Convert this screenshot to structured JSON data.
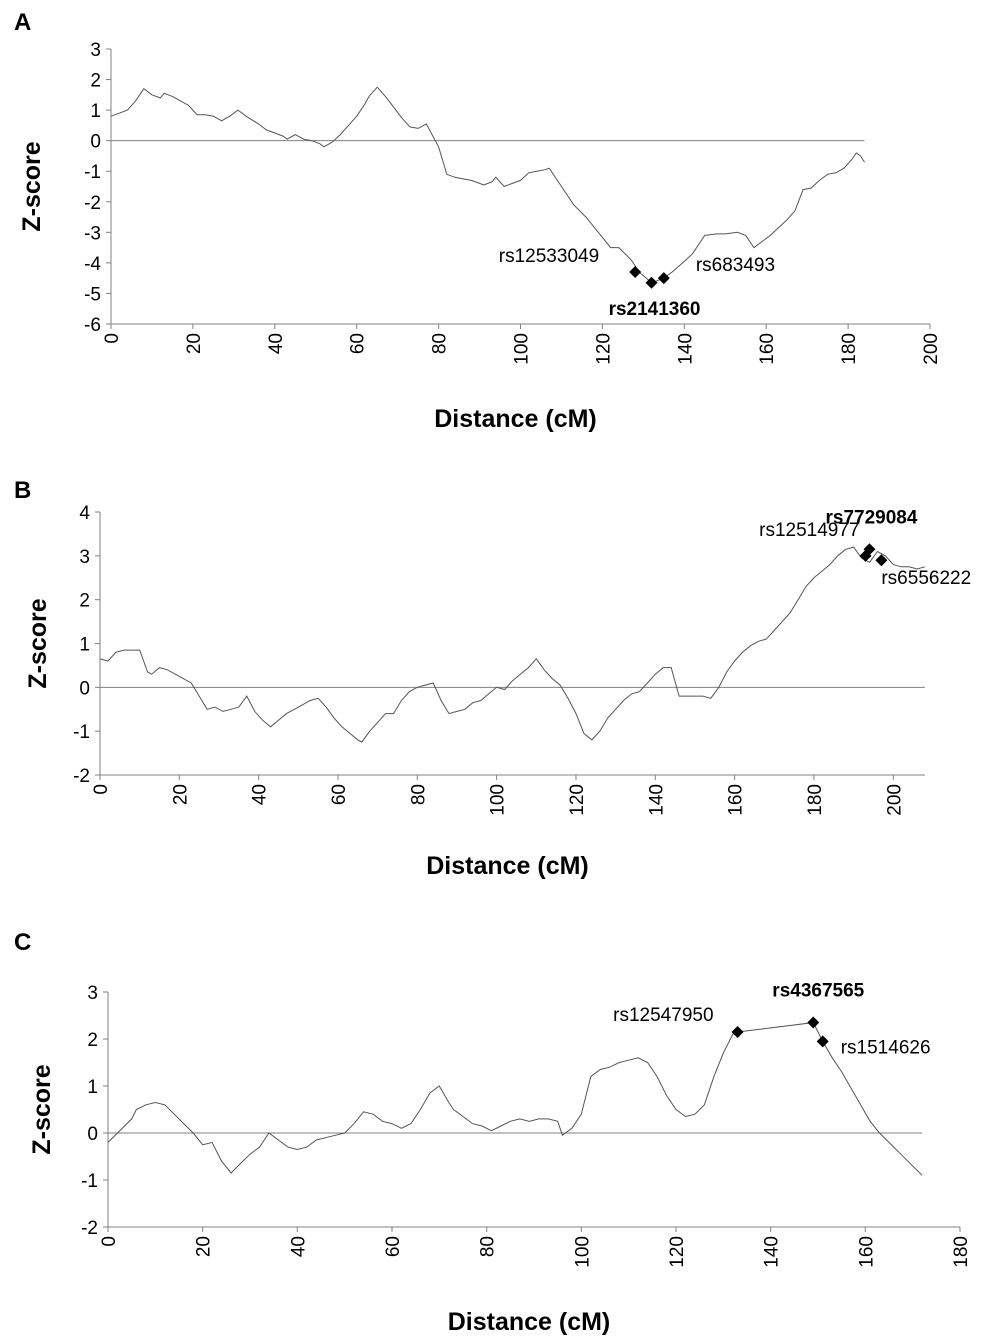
{
  "chart_data": [
    {
      "type": "line",
      "panel": "A",
      "xlabel": "Distance (cM)",
      "ylabel": "Z-score",
      "xlim": [
        0,
        200
      ],
      "ylim": [
        -6,
        3
      ],
      "xticks": [
        "0",
        "20",
        "40",
        "60",
        "80",
        "100",
        "120",
        "140",
        "160",
        "180",
        "200"
      ],
      "yticks": [
        "3",
        "2",
        "1",
        "0",
        "-1",
        "-2",
        "-3",
        "-4",
        "-5",
        "-6"
      ],
      "zero_line": true,
      "series": [
        {
          "x": [
            0,
            2,
            4,
            6,
            8,
            10,
            12,
            13,
            15,
            17,
            19,
            21,
            23,
            25,
            27,
            29,
            31,
            33,
            36,
            38,
            40,
            42,
            43,
            45,
            47,
            49,
            51,
            52,
            54,
            56,
            58,
            60,
            62,
            63,
            65,
            67,
            69,
            71,
            73,
            75,
            77,
            78,
            80,
            82,
            84,
            86,
            88,
            90,
            91,
            93,
            94,
            96,
            98,
            100,
            102,
            104,
            106,
            107,
            110,
            113,
            116,
            119,
            122,
            124,
            127,
            129,
            132,
            135,
            137,
            140,
            142,
            145,
            148,
            150,
            153,
            155,
            157,
            159,
            161,
            163,
            165,
            167,
            169,
            171,
            173,
            175,
            177,
            179,
            181,
            182,
            183,
            184
          ],
          "y": [
            0.8,
            0.9,
            1.0,
            1.3,
            1.7,
            1.5,
            1.4,
            1.55,
            1.45,
            1.3,
            1.15,
            0.85,
            0.85,
            0.8,
            0.65,
            0.8,
            1.0,
            0.8,
            0.55,
            0.35,
            0.25,
            0.15,
            0.05,
            0.2,
            0.05,
            0.0,
            -0.1,
            -0.2,
            -0.05,
            0.2,
            0.5,
            0.8,
            1.2,
            1.45,
            1.75,
            1.45,
            1.1,
            0.75,
            0.45,
            0.4,
            0.55,
            0.3,
            -0.2,
            -1.1,
            -1.2,
            -1.25,
            -1.3,
            -1.4,
            -1.45,
            -1.35,
            -1.2,
            -1.5,
            -1.4,
            -1.3,
            -1.05,
            -1.0,
            -0.95,
            -0.9,
            -1.5,
            -2.1,
            -2.5,
            -3.0,
            -3.5,
            -3.5,
            -3.9,
            -4.3,
            -4.65,
            -4.5,
            -4.3,
            -3.95,
            -3.7,
            -3.1,
            -3.05,
            -3.05,
            -3.0,
            -3.1,
            -3.5,
            -3.3,
            -3.1,
            -2.85,
            -2.6,
            -2.3,
            -1.6,
            -1.55,
            -1.3,
            -1.1,
            -1.05,
            -0.9,
            -0.6,
            -0.4,
            -0.5,
            -0.7
          ]
        }
      ],
      "markers": [
        {
          "name": "rs12533049",
          "x": 128,
          "y": -4.3,
          "bold": false
        },
        {
          "name": "rs2141360",
          "x": 132,
          "y": -4.65,
          "bold": true
        },
        {
          "name": "rs683493",
          "x": 135,
          "y": -4.5,
          "bold": false
        }
      ]
    },
    {
      "type": "line",
      "panel": "B",
      "xlabel": "Distance (cM)",
      "ylabel": "Z-score",
      "xlim": [
        0,
        208
      ],
      "ylim": [
        -2,
        4
      ],
      "xticks": [
        "0",
        "20",
        "40",
        "60",
        "80",
        "100",
        "120",
        "140",
        "160",
        "180",
        "200"
      ],
      "yticks": [
        "4",
        "3",
        "2",
        "1",
        "0",
        "-1",
        "-2"
      ],
      "zero_line": true,
      "series": [
        {
          "x": [
            0,
            2,
            4,
            6,
            8,
            10,
            12,
            13,
            15,
            17,
            19,
            21,
            23,
            25,
            27,
            29,
            31,
            33,
            35,
            37,
            39,
            41,
            43,
            45,
            47,
            49,
            51,
            53,
            55,
            57,
            59,
            61,
            63,
            65,
            66,
            68,
            70,
            72,
            74,
            76,
            78,
            80,
            82,
            84,
            86,
            88,
            90,
            92,
            94,
            96,
            98,
            100,
            102,
            104,
            106,
            108,
            110,
            112,
            114,
            116,
            118,
            120,
            122,
            124,
            126,
            128,
            130,
            132,
            134,
            136,
            138,
            140,
            142,
            144,
            146,
            148,
            150,
            152,
            154,
            156,
            158,
            160,
            162,
            164,
            166,
            168,
            170,
            172,
            174,
            176,
            178,
            180,
            182,
            184,
            186,
            188,
            190,
            192,
            194,
            196,
            198,
            200,
            202,
            204,
            206,
            208
          ],
          "y": [
            0.65,
            0.6,
            0.8,
            0.85,
            0.85,
            0.85,
            0.35,
            0.3,
            0.45,
            0.4,
            0.3,
            0.2,
            0.1,
            -0.2,
            -0.5,
            -0.45,
            -0.55,
            -0.5,
            -0.45,
            -0.2,
            -0.55,
            -0.75,
            -0.9,
            -0.75,
            -0.6,
            -0.5,
            -0.4,
            -0.3,
            -0.25,
            -0.45,
            -0.7,
            -0.9,
            -1.05,
            -1.2,
            -1.25,
            -1.0,
            -0.8,
            -0.6,
            -0.6,
            -0.3,
            -0.1,
            0.0,
            0.05,
            0.1,
            -0.3,
            -0.6,
            -0.55,
            -0.5,
            -0.35,
            -0.3,
            -0.15,
            0.0,
            -0.05,
            0.15,
            0.3,
            0.45,
            0.65,
            0.4,
            0.2,
            0.05,
            -0.25,
            -0.6,
            -1.05,
            -1.2,
            -1.0,
            -0.7,
            -0.5,
            -0.3,
            -0.15,
            -0.1,
            0.1,
            0.3,
            0.45,
            0.45,
            -0.2,
            -0.2,
            -0.2,
            -0.2,
            -0.25,
            0.0,
            0.35,
            0.6,
            0.8,
            0.95,
            1.05,
            1.1,
            1.3,
            1.5,
            1.7,
            2.0,
            2.3,
            2.5,
            2.65,
            2.8,
            3.0,
            3.15,
            3.2,
            2.95,
            2.85,
            3.1,
            3.0,
            2.8,
            2.75,
            2.75,
            2.7,
            2.75
          ]
        }
      ],
      "markers": [
        {
          "name": "rs12514977",
          "x": 193,
          "y": 3.0,
          "bold": false
        },
        {
          "name": "rs7729084",
          "x": 194,
          "y": 3.15,
          "bold": true
        },
        {
          "name": "rs6556222",
          "x": 197,
          "y": 2.9,
          "bold": false
        }
      ]
    },
    {
      "type": "line",
      "panel": "C",
      "xlabel": "Distance (cM)",
      "ylabel": "Z-score",
      "xlim": [
        0,
        180
      ],
      "ylim": [
        -2,
        3
      ],
      "xticks": [
        "0",
        "20",
        "40",
        "60",
        "80",
        "100",
        "120",
        "140",
        "160",
        "180"
      ],
      "yticks": [
        "3",
        "2",
        "1",
        "0",
        "-1",
        "-2"
      ],
      "zero_line": true,
      "series": [
        {
          "x": [
            0,
            2,
            4,
            5,
            6,
            8,
            10,
            12,
            14,
            16,
            18,
            20,
            22,
            24,
            26,
            28,
            30,
            32,
            34,
            36,
            38,
            40,
            42,
            44,
            46,
            48,
            50,
            52,
            54,
            56,
            58,
            60,
            62,
            64,
            66,
            68,
            70,
            72,
            73,
            75,
            77,
            79,
            81,
            83,
            85,
            87,
            89,
            91,
            93,
            95,
            96,
            98,
            100,
            102,
            104,
            106,
            108,
            110,
            112,
            114,
            116,
            118,
            120,
            122,
            124,
            126,
            128,
            130,
            132,
            133,
            149,
            151,
            153,
            155,
            157,
            159,
            161,
            163,
            165,
            167,
            169,
            171,
            172
          ],
          "y": [
            -0.2,
            0.0,
            0.2,
            0.3,
            0.5,
            0.6,
            0.65,
            0.6,
            0.4,
            0.2,
            0.0,
            -0.25,
            -0.2,
            -0.6,
            -0.85,
            -0.65,
            -0.45,
            -0.3,
            0.0,
            -0.15,
            -0.3,
            -0.35,
            -0.3,
            -0.15,
            -0.1,
            -0.05,
            0.0,
            0.2,
            0.45,
            0.4,
            0.25,
            0.2,
            0.1,
            0.2,
            0.5,
            0.85,
            1.0,
            0.65,
            0.5,
            0.35,
            0.2,
            0.15,
            0.05,
            0.15,
            0.25,
            0.3,
            0.25,
            0.3,
            0.3,
            0.25,
            -0.05,
            0.1,
            0.4,
            1.2,
            1.35,
            1.4,
            1.5,
            1.55,
            1.6,
            1.5,
            1.2,
            0.8,
            0.5,
            0.35,
            0.4,
            0.6,
            1.2,
            1.7,
            2.1,
            2.15,
            2.35,
            1.95,
            1.6,
            1.3,
            0.95,
            0.6,
            0.25,
            0.0,
            -0.2,
            -0.4,
            -0.6,
            -0.8,
            -0.9
          ]
        }
      ],
      "markers": [
        {
          "name": "rs12547950",
          "x": 133,
          "y": 2.15,
          "bold": false
        },
        {
          "name": "rs4367565",
          "x": 149,
          "y": 2.35,
          "bold": true
        },
        {
          "name": "rs1514626",
          "x": 151,
          "y": 1.95,
          "bold": false
        }
      ]
    }
  ]
}
